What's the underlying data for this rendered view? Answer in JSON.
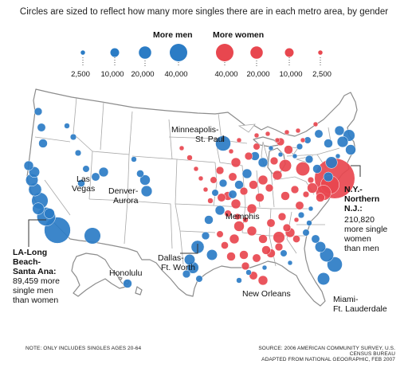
{
  "title": "Circles are sized to reflect how many more singles there are in each metro area, by gender",
  "legend": {
    "men_title": "More men",
    "women_title": "More women",
    "men_ticks": [
      "2,500",
      "10,000",
      "20,000",
      "40,000"
    ],
    "women_ticks": [
      "40,000",
      "20,000",
      "10,000",
      "2,500"
    ]
  },
  "labels": {
    "minneapolis": [
      "Minneapolis-",
      "St. Paul"
    ],
    "las_vegas": [
      "Las",
      "Vegas"
    ],
    "denver": [
      "Denver-",
      "Aurora"
    ],
    "memphis": "Memphis",
    "ny": [
      "N.Y.-",
      "Northern",
      "N.J.:"
    ],
    "ny_detail": [
      "210,820",
      "more single",
      "women",
      "than men"
    ],
    "la": [
      "LA-Long",
      "Beach-",
      "Santa Ana:"
    ],
    "la_detail": [
      "89,459 more",
      "single men",
      "than women"
    ],
    "honolulu": "Honolulu",
    "dallas": [
      "Dallas-",
      "Ft. Worth"
    ],
    "new_orleans": "New Orleans",
    "miami": [
      "Miami-",
      "Ft. Lauderdale"
    ]
  },
  "footnote_left": "NOTE: ONLY INCLUDES SINGLES AGES 20-64",
  "footnote_right": [
    "SOURCE: 2006 AMERICAN COMMUNITY SURVEY, U.S. CENSUS BUREAU",
    "ADAPTED FROM NATIONAL GEOGRAPHIC, FEB 2007"
  ],
  "colors": {
    "men": "#2b7cc5",
    "women": "#e8474f",
    "land": "#ffffff",
    "border": "#9a9a9a"
  },
  "map_data": {
    "legend_men": [
      2500,
      10000,
      20000,
      40000
    ],
    "legend_women": [
      40000,
      20000,
      10000,
      2500
    ],
    "metros": [
      {
        "g": "m",
        "v": 89459
      },
      {
        "g": "m",
        "v": 45000
      },
      {
        "g": "m",
        "v": 35000
      },
      {
        "g": "m",
        "v": 22000
      },
      {
        "g": "m",
        "v": 20000
      },
      {
        "g": "m",
        "v": 18000
      },
      {
        "g": "m",
        "v": 15000
      },
      {
        "g": "m",
        "v": 14000
      },
      {
        "g": "m",
        "v": 12000
      },
      {
        "g": "m",
        "v": 10000
      },
      {
        "g": "m",
        "v": 9000
      },
      {
        "g": "m",
        "v": 8000
      },
      {
        "g": "m",
        "v": 35000
      },
      {
        "g": "m",
        "v": 30000
      },
      {
        "g": "m",
        "v": 22000
      },
      {
        "g": "m",
        "v": 12000
      },
      {
        "g": "m",
        "v": 9000
      },
      {
        "g": "m",
        "v": 7000
      },
      {
        "g": "m",
        "v": 6000
      },
      {
        "g": "m",
        "v": 5000
      },
      {
        "g": "m",
        "v": 5000
      },
      {
        "g": "m",
        "v": 4000
      },
      {
        "g": "m",
        "v": 16000
      },
      {
        "g": "m",
        "v": 14000
      },
      {
        "g": "m",
        "v": 7000
      },
      {
        "g": "m",
        "v": 4000
      },
      {
        "g": "m",
        "v": 18000
      },
      {
        "g": "m",
        "v": 15000
      },
      {
        "g": "m",
        "v": 8000
      },
      {
        "g": "m",
        "v": 6000
      },
      {
        "g": "m",
        "v": 10000
      },
      {
        "g": "m",
        "v": 30000
      },
      {
        "g": "m",
        "v": 25000
      },
      {
        "g": "m",
        "v": 15000
      },
      {
        "g": "m",
        "v": 20000
      },
      {
        "g": "m",
        "v": 9000
      },
      {
        "g": "m",
        "v": 6000
      },
      {
        "g": "m",
        "v": 4000
      },
      {
        "g": "m",
        "v": 5000
      },
      {
        "g": "m",
        "v": 3000
      },
      {
        "g": "m",
        "v": 18000
      },
      {
        "g": "m",
        "v": 3000
      },
      {
        "g": "m",
        "v": 12000
      },
      {
        "g": "m",
        "v": 10000
      },
      {
        "g": "m",
        "v": 8000
      },
      {
        "g": "m",
        "v": 18000
      },
      {
        "g": "m",
        "v": 16000
      },
      {
        "g": "m",
        "v": 14000
      },
      {
        "g": "m",
        "v": 12000
      },
      {
        "g": "m",
        "v": 10000
      },
      {
        "g": "m",
        "v": 9000
      },
      {
        "g": "m",
        "v": 6000
      },
      {
        "g": "m",
        "v": 5000
      },
      {
        "g": "m",
        "v": 3000
      },
      {
        "g": "m",
        "v": 3000
      },
      {
        "g": "m",
        "v": 3000
      },
      {
        "g": "m",
        "v": 10000
      },
      {
        "g": "m",
        "v": 12000
      },
      {
        "g": "m",
        "v": 12000
      },
      {
        "g": "m",
        "v": 10000
      },
      {
        "g": "m",
        "v": 9000
      },
      {
        "g": "m",
        "v": 8000
      },
      {
        "g": "m",
        "v": 6000
      },
      {
        "g": "m",
        "v": 12000
      },
      {
        "g": "m",
        "v": 10000
      },
      {
        "g": "m",
        "v": 8000
      },
      {
        "g": "m",
        "v": 15000
      },
      {
        "g": "m",
        "v": 4000
      },
      {
        "g": "m",
        "v": 4000
      },
      {
        "g": "m",
        "v": 3000
      },
      {
        "g": "m",
        "v": 6000
      },
      {
        "g": "m",
        "v": 3000
      },
      {
        "g": "w",
        "v": 210820
      },
      {
        "g": "w",
        "v": 45000
      },
      {
        "g": "w",
        "v": 30000
      },
      {
        "g": "w",
        "v": 25000
      },
      {
        "g": "w",
        "v": 20000
      },
      {
        "g": "w",
        "v": 14000
      },
      {
        "g": "w",
        "v": 10000
      },
      {
        "g": "w",
        "v": 8000
      },
      {
        "g": "w",
        "v": 14000
      },
      {
        "g": "w",
        "v": 12000
      },
      {
        "g": "w",
        "v": 12000
      },
      {
        "g": "w",
        "v": 10000
      },
      {
        "g": "w",
        "v": 9000
      },
      {
        "g": "w",
        "v": 8000
      },
      {
        "g": "w",
        "v": 12000
      },
      {
        "g": "w",
        "v": 10000
      },
      {
        "g": "w",
        "v": 8000
      },
      {
        "g": "w",
        "v": 12000
      },
      {
        "g": "w",
        "v": 10000
      },
      {
        "g": "w",
        "v": 8000
      },
      {
        "g": "w",
        "v": 7000
      },
      {
        "g": "w",
        "v": 18000
      },
      {
        "g": "w",
        "v": 10000
      },
      {
        "g": "w",
        "v": 9000
      },
      {
        "g": "w",
        "v": 12000
      },
      {
        "g": "w",
        "v": 10000
      },
      {
        "g": "w",
        "v": 12000
      },
      {
        "g": "w",
        "v": 10000
      },
      {
        "g": "w",
        "v": 8000
      },
      {
        "g": "w",
        "v": 12000
      },
      {
        "g": "w",
        "v": 8000
      },
      {
        "g": "w",
        "v": 10000
      },
      {
        "g": "w",
        "v": 8000
      },
      {
        "g": "w",
        "v": 6000
      },
      {
        "g": "w",
        "v": 8000
      },
      {
        "g": "w",
        "v": 12000
      },
      {
        "g": "w",
        "v": 9000
      },
      {
        "g": "w",
        "v": 10000
      },
      {
        "g": "w",
        "v": 8000
      },
      {
        "g": "w",
        "v": 6000
      },
      {
        "g": "w",
        "v": 9000
      },
      {
        "g": "w",
        "v": 6000
      },
      {
        "g": "w",
        "v": 5000
      },
      {
        "g": "w",
        "v": 4000
      },
      {
        "g": "w",
        "v": 9000
      },
      {
        "g": "w",
        "v": 5000
      },
      {
        "g": "w",
        "v": 5000
      },
      {
        "g": "w",
        "v": 3000
      },
      {
        "g": "w",
        "v": 12000
      },
      {
        "g": "w",
        "v": 8000
      },
      {
        "g": "w",
        "v": 10000
      },
      {
        "g": "w",
        "v": 9000
      },
      {
        "g": "w",
        "v": 8000
      },
      {
        "g": "w",
        "v": 10000
      },
      {
        "g": "w",
        "v": 7000
      },
      {
        "g": "w",
        "v": 6000
      },
      {
        "g": "w",
        "v": 4000
      },
      {
        "g": "w",
        "v": 3000
      },
      {
        "g": "w",
        "v": 3000
      },
      {
        "g": "w",
        "v": 3000
      },
      {
        "g": "w",
        "v": 4000
      },
      {
        "g": "w",
        "v": 3000
      },
      {
        "g": "w",
        "v": 3000
      },
      {
        "g": "w",
        "v": 3000
      },
      {
        "g": "w",
        "v": 3000
      },
      {
        "g": "w",
        "v": 3000
      },
      {
        "g": "w",
        "v": 3000
      },
      {
        "g": "w",
        "v": 3000
      },
      {
        "g": "w",
        "v": 3000
      },
      {
        "g": "w",
        "v": 3000
      },
      {
        "g": "w",
        "v": 3000
      },
      {
        "g": "w",
        "v": 3000
      },
      {
        "g": "w",
        "v": 3000
      }
    ]
  }
}
